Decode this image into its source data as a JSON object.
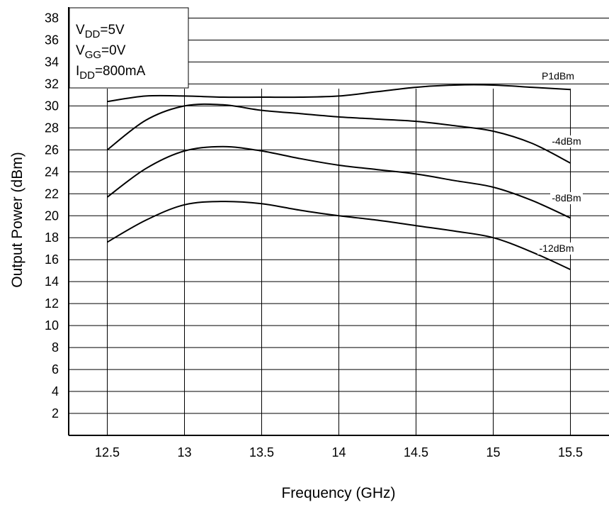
{
  "chart_data": {
    "type": "line",
    "xlabel": "Frequency (GHz)",
    "ylabel": "Output Power (dBm)",
    "xlim": [
      12.25,
      15.75
    ],
    "ylim": [
      0,
      39
    ],
    "x_ticks": [
      "12.5",
      "13",
      "13.5",
      "14",
      "14.5",
      "15",
      "15.5"
    ],
    "y_ticks": [
      "2",
      "4",
      "6",
      "8",
      "10",
      "12",
      "14",
      "16",
      "18",
      "20",
      "22",
      "24",
      "26",
      "28",
      "30",
      "32",
      "34",
      "36",
      "38"
    ],
    "grid": true,
    "conditions": [
      {
        "main": "V",
        "sub": "DD",
        "rest": "=5V"
      },
      {
        "main": "V",
        "sub": "GG",
        "rest": "=0V"
      },
      {
        "main": "I",
        "sub": "DD",
        "rest": "=800mA"
      }
    ],
    "series": [
      {
        "name": "P1dBm",
        "x": [
          12.5,
          12.75,
          13.0,
          13.25,
          13.5,
          13.75,
          14.0,
          14.25,
          14.5,
          14.75,
          15.0,
          15.25,
          15.5
        ],
        "y": [
          30.4,
          30.9,
          30.9,
          30.8,
          30.8,
          30.8,
          30.9,
          31.3,
          31.7,
          31.9,
          31.9,
          31.7,
          31.5
        ]
      },
      {
        "name": "-4dBm",
        "x": [
          12.5,
          12.75,
          13.0,
          13.25,
          13.5,
          13.75,
          14.0,
          14.25,
          14.5,
          14.75,
          15.0,
          15.25,
          15.5
        ],
        "y": [
          26.0,
          28.7,
          30.0,
          30.1,
          29.6,
          29.3,
          29.0,
          28.8,
          28.6,
          28.2,
          27.7,
          26.6,
          24.8
        ]
      },
      {
        "name": "-8dBm",
        "x": [
          12.5,
          12.75,
          13.0,
          13.25,
          13.5,
          13.75,
          14.0,
          14.25,
          14.5,
          14.75,
          15.0,
          15.25,
          15.5
        ],
        "y": [
          21.7,
          24.3,
          25.9,
          26.3,
          25.9,
          25.2,
          24.6,
          24.2,
          23.8,
          23.2,
          22.6,
          21.4,
          19.8
        ]
      },
      {
        "name": "-12dBm",
        "x": [
          12.5,
          12.75,
          13.0,
          13.25,
          13.5,
          13.75,
          14.0,
          14.25,
          14.5,
          14.75,
          15.0,
          15.25,
          15.5
        ],
        "y": [
          17.6,
          19.6,
          21.0,
          21.3,
          21.1,
          20.5,
          20.0,
          19.6,
          19.1,
          18.6,
          18.0,
          16.7,
          15.1
        ]
      }
    ],
    "line_color": "#000000",
    "grid_color": "#000000"
  }
}
